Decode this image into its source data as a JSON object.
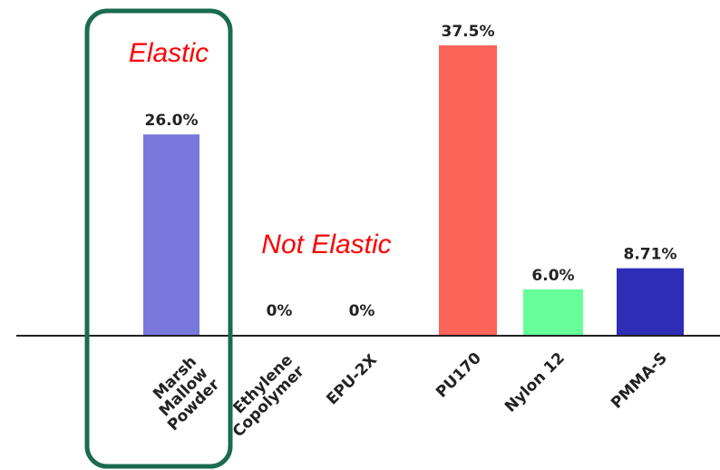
{
  "chart_data": {
    "type": "bar",
    "categories": [
      "Marsh Mallow Powder",
      "Ethylene Copolymer",
      "EPU-2X",
      "PU170",
      "Nylon 12",
      "PMMA-S"
    ],
    "category_lines": [
      [
        "Marsh",
        "Mallow",
        "Powder"
      ],
      [
        "Ethylene",
        "Copolymer"
      ],
      [
        "EPU-2X"
      ],
      [
        "PU170"
      ],
      [
        "Nylon 12"
      ],
      [
        "PMMA-S"
      ]
    ],
    "values": [
      26.0,
      0,
      0,
      37.5,
      6.0,
      8.71
    ],
    "value_labels": [
      "26.0%",
      "0%",
      "0%",
      "37.5%",
      "6.0%",
      "8.71%"
    ],
    "colors": [
      "#7878dc",
      "#ffffff",
      "#ffffff",
      "#fc6359",
      "#66ff99",
      "#2d2db8"
    ],
    "title": "",
    "xlabel": "",
    "ylabel": "",
    "ylim": [
      0,
      40
    ],
    "grid": false,
    "legend": "none",
    "annotations": [
      {
        "text": "Elastic",
        "color": "#ff0000"
      },
      {
        "text": "Not Elastic",
        "color": "#ff0000"
      }
    ],
    "highlight": {
      "category": "Marsh Mallow Powder",
      "color": "#1a6b50"
    }
  }
}
